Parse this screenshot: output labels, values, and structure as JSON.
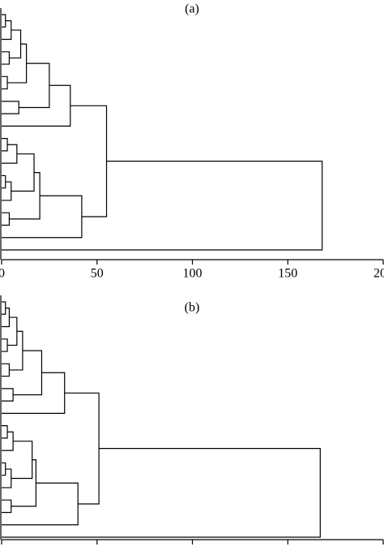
{
  "chart_data": [
    {
      "type": "dendrogram",
      "title": "(a)",
      "xlim": [
        0,
        200
      ],
      "xticks": [
        0,
        50,
        100,
        150,
        200
      ],
      "tick_labels": true,
      "color": "#000000",
      "merges": [
        [
          0,
          1,
          2
        ],
        [
          20,
          2,
          5
        ],
        [
          3,
          4,
          4
        ],
        [
          21,
          22,
          10
        ],
        [
          5,
          6,
          3
        ],
        [
          23,
          24,
          13
        ],
        [
          7,
          8,
          9
        ],
        [
          25,
          26,
          25
        ],
        [
          27,
          9,
          36
        ],
        [
          10,
          11,
          3
        ],
        [
          29,
          12,
          8
        ],
        [
          13,
          14,
          2
        ],
        [
          31,
          15,
          5
        ],
        [
          30,
          32,
          17
        ],
        [
          16,
          17,
          4
        ],
        [
          33,
          34,
          20
        ],
        [
          35,
          18,
          42
        ],
        [
          28,
          36,
          55
        ],
        [
          37,
          19,
          168
        ]
      ]
    },
    {
      "type": "dendrogram",
      "title": "(b)",
      "xlim": [
        0,
        200
      ],
      "xticks": [
        0,
        50,
        100,
        150,
        200
      ],
      "tick_labels": false,
      "color": "#000000",
      "merges": [
        [
          0,
          1,
          2
        ],
        [
          20,
          2,
          4
        ],
        [
          3,
          4,
          3
        ],
        [
          21,
          22,
          8
        ],
        [
          5,
          6,
          4
        ],
        [
          23,
          24,
          11
        ],
        [
          7,
          8,
          6
        ],
        [
          25,
          26,
          21
        ],
        [
          27,
          9,
          33
        ],
        [
          10,
          11,
          3
        ],
        [
          29,
          12,
          6
        ],
        [
          13,
          14,
          2
        ],
        [
          31,
          15,
          5
        ],
        [
          30,
          32,
          16
        ],
        [
          16,
          17,
          5
        ],
        [
          33,
          34,
          18
        ],
        [
          35,
          18,
          40
        ],
        [
          28,
          36,
          51
        ],
        [
          37,
          19,
          167
        ]
      ]
    }
  ]
}
